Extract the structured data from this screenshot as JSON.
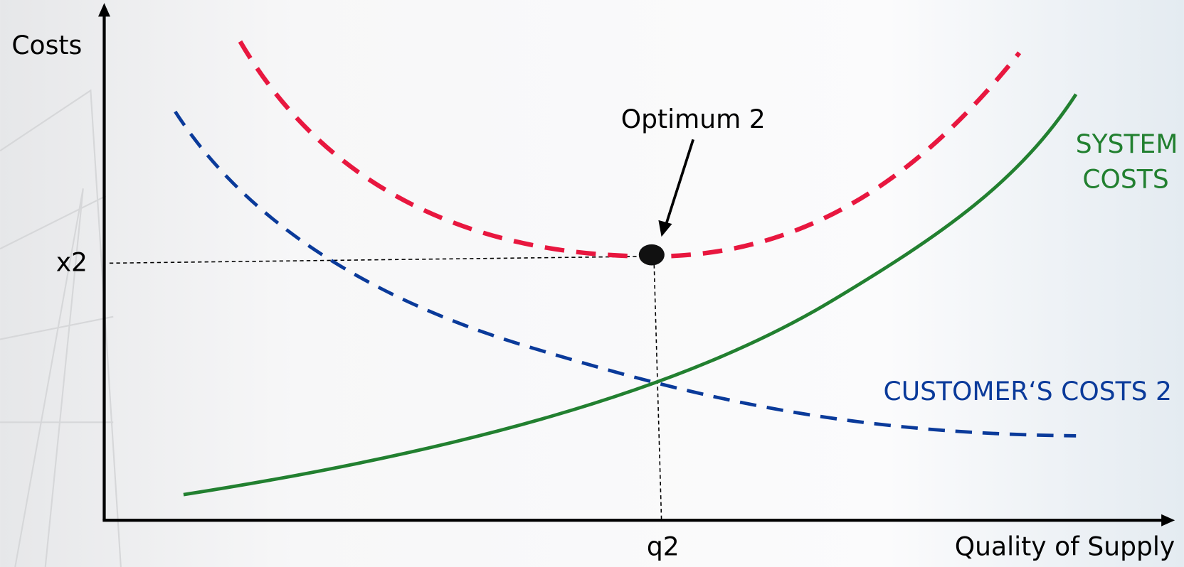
{
  "axes": {
    "y_label": "Costs",
    "x_label": "Quality of Supply"
  },
  "markers": {
    "y_level": "x2",
    "x_level": "q2"
  },
  "annotation": "Optimum 2",
  "curves": {
    "system_costs": [
      "SYSTEM",
      "COSTS"
    ],
    "customer_costs": "CUSTOMER‘S COSTS 2"
  }
}
